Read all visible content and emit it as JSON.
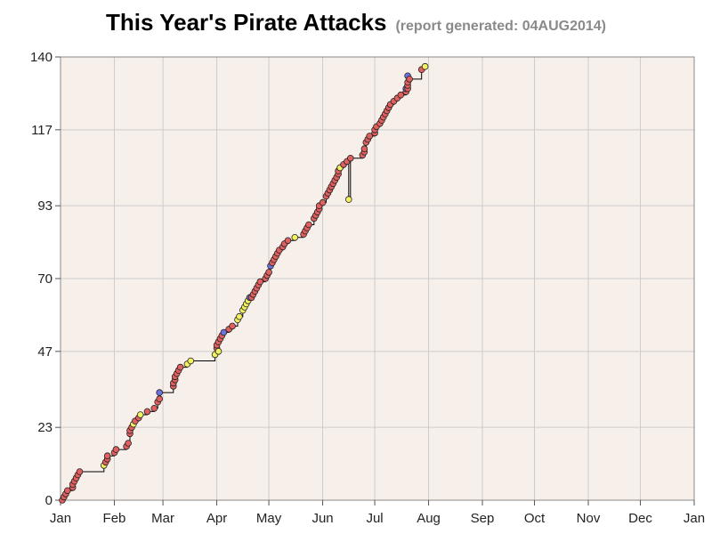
{
  "chart_data": {
    "type": "scatter",
    "title": "This Year's Pirate Attacks",
    "subtitle": "(report generated: 04AUG2014)",
    "xlabel": "",
    "ylabel": "",
    "x_tick_labels": [
      "Jan",
      "Feb",
      "Mar",
      "Apr",
      "May",
      "Jun",
      "Jul",
      "Aug",
      "Sep",
      "Oct",
      "Nov",
      "Dec",
      "Jan"
    ],
    "x_ticks": [
      "2014-01-01",
      "2014-02-01",
      "2014-03-01",
      "2014-04-01",
      "2014-05-01",
      "2014-06-01",
      "2014-07-01",
      "2014-08-01",
      "2014-09-01",
      "2014-10-01",
      "2014-11-01",
      "2014-12-01",
      "2015-01-01"
    ],
    "xlim": [
      "2014-01-01",
      "2015-01-01"
    ],
    "y_ticks": [
      0,
      23,
      47,
      70,
      93,
      117,
      140
    ],
    "ylim": [
      0,
      140
    ],
    "grid": true,
    "step_line": true,
    "colors": {
      "background": "#f7efea",
      "grid": "#cccccc",
      "attack": "#e06060",
      "attempt": "#f0f060",
      "other": "#7070e0",
      "line": "#000000"
    },
    "series": [
      {
        "category": "attack",
        "points": [
          [
            "2014-01-02",
            0
          ],
          [
            "2014-01-03",
            1
          ],
          [
            "2014-01-04",
            2
          ],
          [
            "2014-01-05",
            3
          ],
          [
            "2014-01-08",
            4
          ],
          [
            "2014-01-08",
            5
          ],
          [
            "2014-01-09",
            6
          ],
          [
            "2014-01-10",
            7
          ],
          [
            "2014-01-11",
            8
          ],
          [
            "2014-01-12",
            9
          ],
          [
            "2014-01-27",
            12
          ],
          [
            "2014-01-28",
            13
          ],
          [
            "2014-01-28",
            14
          ],
          [
            "2014-02-01",
            15
          ],
          [
            "2014-02-02",
            16
          ],
          [
            "2014-02-08",
            17
          ],
          [
            "2014-02-09",
            18
          ],
          [
            "2014-02-10",
            21
          ],
          [
            "2014-02-10",
            22
          ],
          [
            "2014-02-11",
            23
          ],
          [
            "2014-02-13",
            25
          ],
          [
            "2014-02-15",
            26
          ],
          [
            "2014-02-20",
            28
          ],
          [
            "2014-02-24",
            29
          ],
          [
            "2014-02-26",
            31
          ],
          [
            "2014-02-27",
            32
          ],
          [
            "2014-03-07",
            36
          ],
          [
            "2014-03-07",
            37
          ],
          [
            "2014-03-08",
            38
          ],
          [
            "2014-03-08",
            39
          ],
          [
            "2014-03-09",
            40
          ],
          [
            "2014-03-10",
            41
          ],
          [
            "2014-03-11",
            42
          ],
          [
            "2014-04-01",
            48
          ],
          [
            "2014-04-01",
            49
          ],
          [
            "2014-04-02",
            50
          ],
          [
            "2014-04-03",
            51
          ],
          [
            "2014-04-04",
            52
          ],
          [
            "2014-04-08",
            54
          ],
          [
            "2014-04-10",
            55
          ],
          [
            "2014-04-21",
            64
          ],
          [
            "2014-04-22",
            65
          ],
          [
            "2014-04-23",
            66
          ],
          [
            "2014-04-24",
            67
          ],
          [
            "2014-04-25",
            68
          ],
          [
            "2014-04-26",
            69
          ],
          [
            "2014-04-29",
            70
          ],
          [
            "2014-04-30",
            71
          ],
          [
            "2014-05-01",
            72
          ],
          [
            "2014-05-03",
            75
          ],
          [
            "2014-05-04",
            76
          ],
          [
            "2014-05-05",
            77
          ],
          [
            "2014-05-06",
            78
          ],
          [
            "2014-05-07",
            79
          ],
          [
            "2014-05-09",
            80
          ],
          [
            "2014-05-10",
            81
          ],
          [
            "2014-05-12",
            82
          ],
          [
            "2014-05-21",
            84
          ],
          [
            "2014-05-22",
            85
          ],
          [
            "2014-05-23",
            86
          ],
          [
            "2014-05-24",
            87
          ],
          [
            "2014-05-27",
            89
          ],
          [
            "2014-05-28",
            90
          ],
          [
            "2014-05-29",
            91
          ],
          [
            "2014-05-30",
            92
          ],
          [
            "2014-05-30",
            93
          ],
          [
            "2014-06-01",
            94
          ],
          [
            "2014-06-03",
            96
          ],
          [
            "2014-06-04",
            97
          ],
          [
            "2014-06-05",
            98
          ],
          [
            "2014-06-06",
            99
          ],
          [
            "2014-06-07",
            100
          ],
          [
            "2014-06-08",
            101
          ],
          [
            "2014-06-09",
            102
          ],
          [
            "2014-06-10",
            103
          ],
          [
            "2014-06-10",
            104
          ],
          [
            "2014-06-11",
            105
          ],
          [
            "2014-06-13",
            106
          ],
          [
            "2014-06-15",
            107
          ],
          [
            "2014-06-17",
            108
          ],
          [
            "2014-06-24",
            109
          ],
          [
            "2014-06-25",
            110
          ],
          [
            "2014-06-25",
            111
          ],
          [
            "2014-06-26",
            113
          ],
          [
            "2014-06-27",
            114
          ],
          [
            "2014-06-28",
            115
          ],
          [
            "2014-07-01",
            116
          ],
          [
            "2014-07-01",
            117
          ],
          [
            "2014-07-02",
            118
          ],
          [
            "2014-07-04",
            119
          ],
          [
            "2014-07-05",
            120
          ],
          [
            "2014-07-06",
            121
          ],
          [
            "2014-07-07",
            122
          ],
          [
            "2014-07-08",
            123
          ],
          [
            "2014-07-09",
            124
          ],
          [
            "2014-07-10",
            125
          ],
          [
            "2014-07-12",
            126
          ],
          [
            "2014-07-14",
            127
          ],
          [
            "2014-07-16",
            128
          ],
          [
            "2014-07-19",
            129
          ],
          [
            "2014-07-20",
            130
          ],
          [
            "2014-07-20",
            131
          ],
          [
            "2014-07-20",
            132
          ],
          [
            "2014-07-21",
            133
          ],
          [
            "2014-07-28",
            136
          ]
        ]
      },
      {
        "category": "attempt",
        "points": [
          [
            "2014-01-26",
            11
          ],
          [
            "2014-02-12",
            24
          ],
          [
            "2014-02-16",
            27
          ],
          [
            "2014-03-15",
            43
          ],
          [
            "2014-03-17",
            44
          ],
          [
            "2014-03-31",
            46
          ],
          [
            "2014-04-02",
            47
          ],
          [
            "2014-04-13",
            57
          ],
          [
            "2014-04-14",
            58
          ],
          [
            "2014-04-16",
            60
          ],
          [
            "2014-04-17",
            61
          ],
          [
            "2014-04-18",
            62
          ],
          [
            "2014-04-19",
            63
          ],
          [
            "2014-05-16",
            83
          ],
          [
            "2014-06-16",
            95
          ],
          [
            "2014-06-11",
            105
          ],
          [
            "2014-07-30",
            137
          ]
        ]
      },
      {
        "category": "other",
        "points": [
          [
            "2014-02-27",
            34
          ],
          [
            "2014-04-05",
            53
          ],
          [
            "2014-04-20",
            64
          ],
          [
            "2014-05-02",
            74
          ],
          [
            "2014-07-19",
            130
          ],
          [
            "2014-07-20",
            134
          ]
        ]
      }
    ]
  }
}
